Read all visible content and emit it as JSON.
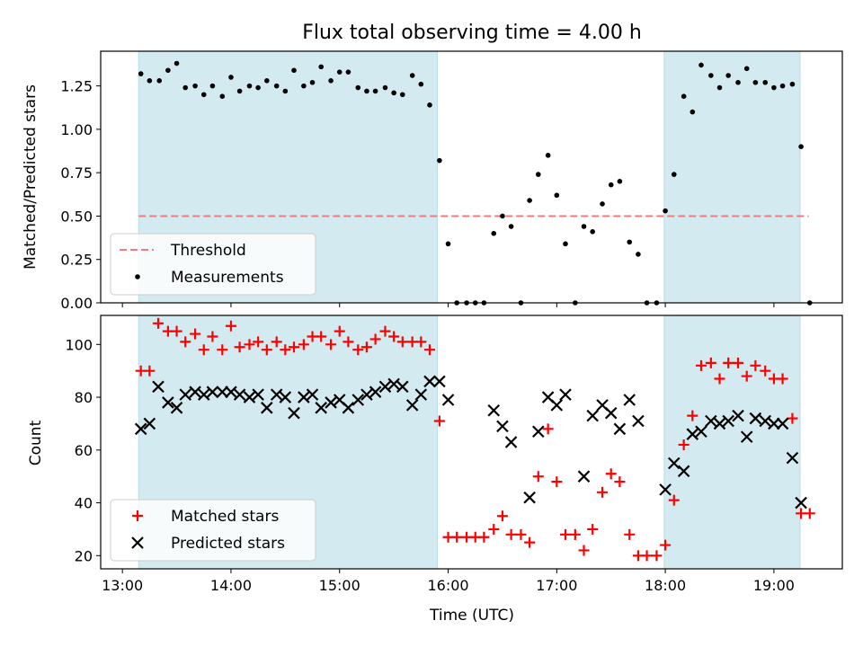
{
  "chart_data": [
    {
      "type": "scatter",
      "title": "Flux total observing time = 4.00 h",
      "xlabel": "",
      "ylabel": "Matched/Predicted stars",
      "xlim": [
        12.8,
        19.63
      ],
      "ylim": [
        0,
        1.45
      ],
      "x_ticks": [
        13,
        14,
        15,
        16,
        17,
        18,
        19
      ],
      "x_tick_labels": [
        "",
        "",
        "",
        "",
        "",
        "",
        ""
      ],
      "y_ticks": [
        0,
        0.25,
        0.5,
        0.75,
        1.0,
        1.25
      ],
      "y_tick_labels": [
        "0.00",
        "0.25",
        "0.50",
        "0.75",
        "1.00",
        "1.25"
      ],
      "shaded_intervals": [
        [
          13.15,
          15.9
        ],
        [
          17.99,
          19.24
        ]
      ],
      "shade_color": "#d4eaf1",
      "legend_placement": "lower-left",
      "series": [
        {
          "name": "Threshold",
          "kind": "dashed-line",
          "color": "#f4797a",
          "x": [
            13.15,
            19.32
          ],
          "y": [
            0.5,
            0.5
          ]
        },
        {
          "name": "Measurements",
          "kind": "dot",
          "color": "#000000",
          "points": [
            [
              13.17,
              1.32
            ],
            [
              13.25,
              1.28
            ],
            [
              13.34,
              1.28
            ],
            [
              13.42,
              1.34
            ],
            [
              13.5,
              1.38
            ],
            [
              13.58,
              1.24
            ],
            [
              13.67,
              1.25
            ],
            [
              13.75,
              1.2
            ],
            [
              13.83,
              1.25
            ],
            [
              13.92,
              1.19
            ],
            [
              14.0,
              1.3
            ],
            [
              14.08,
              1.22
            ],
            [
              14.17,
              1.25
            ],
            [
              14.25,
              1.24
            ],
            [
              14.33,
              1.28
            ],
            [
              14.42,
              1.25
            ],
            [
              14.5,
              1.22
            ],
            [
              14.58,
              1.34
            ],
            [
              14.67,
              1.25
            ],
            [
              14.75,
              1.27
            ],
            [
              14.83,
              1.36
            ],
            [
              14.92,
              1.28
            ],
            [
              15.0,
              1.33
            ],
            [
              15.08,
              1.33
            ],
            [
              15.17,
              1.24
            ],
            [
              15.25,
              1.22
            ],
            [
              15.33,
              1.22
            ],
            [
              15.42,
              1.24
            ],
            [
              15.5,
              1.21
            ],
            [
              15.58,
              1.2
            ],
            [
              15.67,
              1.31
            ],
            [
              15.75,
              1.26
            ],
            [
              15.83,
              1.14
            ],
            [
              15.92,
              0.82
            ],
            [
              16.0,
              0.34
            ],
            [
              16.08,
              0.0
            ],
            [
              16.17,
              0.0
            ],
            [
              16.25,
              0.0
            ],
            [
              16.33,
              0.0
            ],
            [
              16.42,
              0.4
            ],
            [
              16.5,
              0.5
            ],
            [
              16.58,
              0.44
            ],
            [
              16.67,
              0.0
            ],
            [
              16.75,
              0.59
            ],
            [
              16.83,
              0.74
            ],
            [
              16.92,
              0.85
            ],
            [
              17.0,
              0.62
            ],
            [
              17.08,
              0.34
            ],
            [
              17.17,
              0.0
            ],
            [
              17.25,
              0.44
            ],
            [
              17.33,
              0.41
            ],
            [
              17.42,
              0.57
            ],
            [
              17.5,
              0.68
            ],
            [
              17.58,
              0.7
            ],
            [
              17.67,
              0.35
            ],
            [
              17.75,
              0.28
            ],
            [
              17.83,
              0.0
            ],
            [
              17.92,
              0.0
            ],
            [
              18.0,
              0.53
            ],
            [
              18.08,
              0.74
            ],
            [
              18.17,
              1.19
            ],
            [
              18.25,
              1.1
            ],
            [
              18.33,
              1.37
            ],
            [
              18.42,
              1.31
            ],
            [
              18.5,
              1.24
            ],
            [
              18.58,
              1.31
            ],
            [
              18.67,
              1.27
            ],
            [
              18.75,
              1.35
            ],
            [
              18.83,
              1.27
            ],
            [
              18.92,
              1.27
            ],
            [
              19.0,
              1.24
            ],
            [
              19.08,
              1.25
            ],
            [
              19.17,
              1.26
            ],
            [
              19.25,
              0.9
            ],
            [
              19.33,
              0.0
            ]
          ]
        }
      ]
    },
    {
      "type": "scatter",
      "title": "",
      "xlabel": "Time (UTC)",
      "ylabel": "Count",
      "xlim": [
        12.8,
        19.63
      ],
      "ylim": [
        15,
        111
      ],
      "x_ticks": [
        13,
        14,
        15,
        16,
        17,
        18,
        19
      ],
      "x_tick_labels": [
        "13:00",
        "14:00",
        "15:00",
        "16:00",
        "17:00",
        "18:00",
        "19:00"
      ],
      "y_ticks": [
        20,
        40,
        60,
        80,
        100
      ],
      "y_tick_labels": [
        "20",
        "40",
        "60",
        "80",
        "100"
      ],
      "shaded_intervals": [
        [
          13.15,
          15.9
        ],
        [
          17.99,
          19.24
        ]
      ],
      "shade_color": "#d4eaf1",
      "legend_placement": "lower-left",
      "series": [
        {
          "name": "Matched stars",
          "kind": "plus",
          "color": "#ff0000",
          "points": [
            [
              13.17,
              90
            ],
            [
              13.25,
              90
            ],
            [
              13.33,
              108
            ],
            [
              13.42,
              105
            ],
            [
              13.5,
              105
            ],
            [
              13.58,
              101
            ],
            [
              13.67,
              104
            ],
            [
              13.75,
              98
            ],
            [
              13.83,
              103
            ],
            [
              13.92,
              98
            ],
            [
              14.0,
              107
            ],
            [
              14.08,
              99
            ],
            [
              14.17,
              100
            ],
            [
              14.25,
              101
            ],
            [
              14.33,
              98
            ],
            [
              14.42,
              101
            ],
            [
              14.5,
              98
            ],
            [
              14.58,
              99
            ],
            [
              14.67,
              100
            ],
            [
              14.75,
              103
            ],
            [
              14.83,
              103
            ],
            [
              14.92,
              100
            ],
            [
              15.0,
              105
            ],
            [
              15.08,
              101
            ],
            [
              15.17,
              98
            ],
            [
              15.25,
              99
            ],
            [
              15.33,
              102
            ],
            [
              15.42,
              105
            ],
            [
              15.5,
              103
            ],
            [
              15.58,
              101
            ],
            [
              15.67,
              101
            ],
            [
              15.75,
              101
            ],
            [
              15.83,
              98
            ],
            [
              15.92,
              71
            ],
            [
              16.0,
              27
            ],
            [
              16.08,
              27
            ],
            [
              16.17,
              27
            ],
            [
              16.25,
              27
            ],
            [
              16.33,
              27
            ],
            [
              16.42,
              30
            ],
            [
              16.5,
              35
            ],
            [
              16.58,
              28
            ],
            [
              16.67,
              28
            ],
            [
              16.75,
              25
            ],
            [
              16.83,
              50
            ],
            [
              16.92,
              68
            ],
            [
              17.0,
              48
            ],
            [
              17.08,
              28
            ],
            [
              17.17,
              28
            ],
            [
              17.25,
              22
            ],
            [
              17.33,
              30
            ],
            [
              17.42,
              44
            ],
            [
              17.5,
              51
            ],
            [
              17.58,
              48
            ],
            [
              17.67,
              28
            ],
            [
              17.75,
              20
            ],
            [
              17.83,
              20
            ],
            [
              17.92,
              20
            ],
            [
              18.0,
              24
            ],
            [
              18.08,
              41
            ],
            [
              18.17,
              62
            ],
            [
              18.25,
              73
            ],
            [
              18.33,
              92
            ],
            [
              18.42,
              93
            ],
            [
              18.5,
              87
            ],
            [
              18.58,
              93
            ],
            [
              18.67,
              93
            ],
            [
              18.75,
              88
            ],
            [
              18.83,
              92
            ],
            [
              18.92,
              90
            ],
            [
              19.0,
              87
            ],
            [
              19.08,
              87
            ],
            [
              19.17,
              72
            ],
            [
              19.25,
              36
            ],
            [
              19.33,
              36
            ]
          ]
        },
        {
          "name": "Predicted stars",
          "kind": "cross",
          "color": "#000000",
          "points": [
            [
              13.17,
              68
            ],
            [
              13.25,
              70
            ],
            [
              13.33,
              84
            ],
            [
              13.42,
              78
            ],
            [
              13.5,
              76
            ],
            [
              13.58,
              81
            ],
            [
              13.67,
              82
            ],
            [
              13.75,
              81
            ],
            [
              13.83,
              82
            ],
            [
              13.92,
              82
            ],
            [
              14.0,
              82
            ],
            [
              14.08,
              81
            ],
            [
              14.17,
              80
            ],
            [
              14.25,
              81
            ],
            [
              14.33,
              76
            ],
            [
              14.42,
              81
            ],
            [
              14.5,
              80
            ],
            [
              14.58,
              74
            ],
            [
              14.67,
              80
            ],
            [
              14.75,
              81
            ],
            [
              14.83,
              76
            ],
            [
              14.92,
              78
            ],
            [
              15.0,
              79
            ],
            [
              15.08,
              76
            ],
            [
              15.17,
              79
            ],
            [
              15.25,
              81
            ],
            [
              15.33,
              82
            ],
            [
              15.42,
              84
            ],
            [
              15.5,
              85
            ],
            [
              15.58,
              84
            ],
            [
              15.67,
              77
            ],
            [
              15.75,
              81
            ],
            [
              15.83,
              86
            ],
            [
              15.92,
              86
            ],
            [
              16.0,
              79
            ],
            [
              16.42,
              75
            ],
            [
              16.5,
              69
            ],
            [
              16.58,
              63
            ],
            [
              16.75,
              42
            ],
            [
              16.83,
              67
            ],
            [
              16.92,
              80
            ],
            [
              17.0,
              77
            ],
            [
              17.08,
              81
            ],
            [
              17.25,
              50
            ],
            [
              17.33,
              73
            ],
            [
              17.42,
              77
            ],
            [
              17.5,
              74
            ],
            [
              17.58,
              68
            ],
            [
              17.67,
              79
            ],
            [
              17.75,
              71
            ],
            [
              18.0,
              45
            ],
            [
              18.08,
              55
            ],
            [
              18.17,
              52
            ],
            [
              18.25,
              66
            ],
            [
              18.33,
              67
            ],
            [
              18.42,
              71
            ],
            [
              18.5,
              70
            ],
            [
              18.58,
              71
            ],
            [
              18.67,
              73
            ],
            [
              18.75,
              65
            ],
            [
              18.83,
              72
            ],
            [
              18.92,
              71
            ],
            [
              19.0,
              70
            ],
            [
              19.08,
              70
            ],
            [
              19.17,
              57
            ],
            [
              19.25,
              40
            ]
          ]
        }
      ]
    }
  ]
}
